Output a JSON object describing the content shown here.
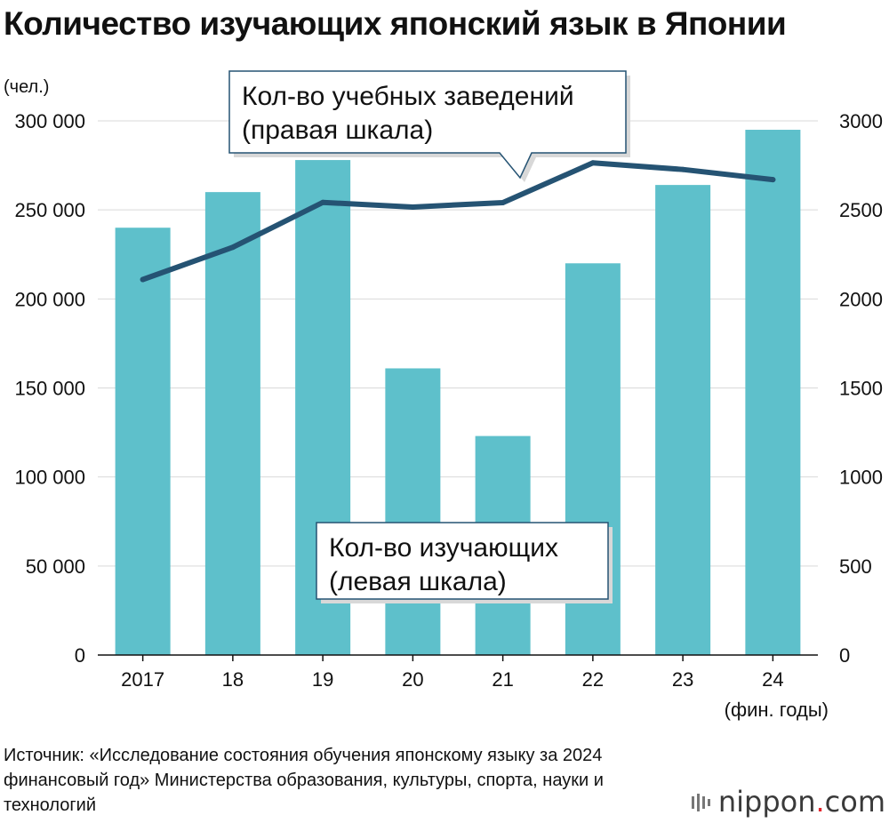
{
  "title": "Количество изучающих японский язык в Японии",
  "source": "Источник: «Исследование состояния обучения японскому языку за 2024 финансовый год» Министерства образования, культуры, спорта, науки и технологий",
  "logo": {
    "name": "nippon",
    "dot": ".",
    "suffix": "com"
  },
  "colors": {
    "bar": "#5ec0cb",
    "line": "#255373",
    "grid": "#d9d9d9",
    "callout_border": "#255373"
  },
  "chart_data": {
    "type": "bar+line",
    "categories": [
      "2017",
      "18",
      "19",
      "20",
      "21",
      "22",
      "23",
      "24"
    ],
    "xlabel": "(фин. годы)",
    "y_left": {
      "label": "(чел.)",
      "lim": [
        0,
        300000
      ],
      "ticks": [
        "0",
        "50 000",
        "100 000",
        "150 000",
        "200 000",
        "250 000",
        "300 000"
      ]
    },
    "y_right": {
      "lim": [
        0,
        3000
      ],
      "ticks": [
        "0",
        "500",
        "1000",
        "1500",
        "2000",
        "2500",
        "3000"
      ]
    },
    "series": [
      {
        "name": "Кол-во изучающих (левая шкала)",
        "type": "bar",
        "axis": "left",
        "values": [
          240000,
          260000,
          278000,
          161000,
          123000,
          220000,
          264000,
          295000
        ]
      },
      {
        "name": "Кол-во учебных заведений (правая шкала)",
        "type": "line",
        "axis": "right",
        "values": [
          2109,
          2290,
          2542,
          2516,
          2541,
          2764,
          2727,
          2670
        ]
      }
    ],
    "annotations": [
      {
        "lines": [
          "Кол-во учебных заведений",
          "(правая шкала)"
        ]
      },
      {
        "lines": [
          "Кол-во изучающих",
          "(левая шкала)"
        ]
      }
    ]
  }
}
